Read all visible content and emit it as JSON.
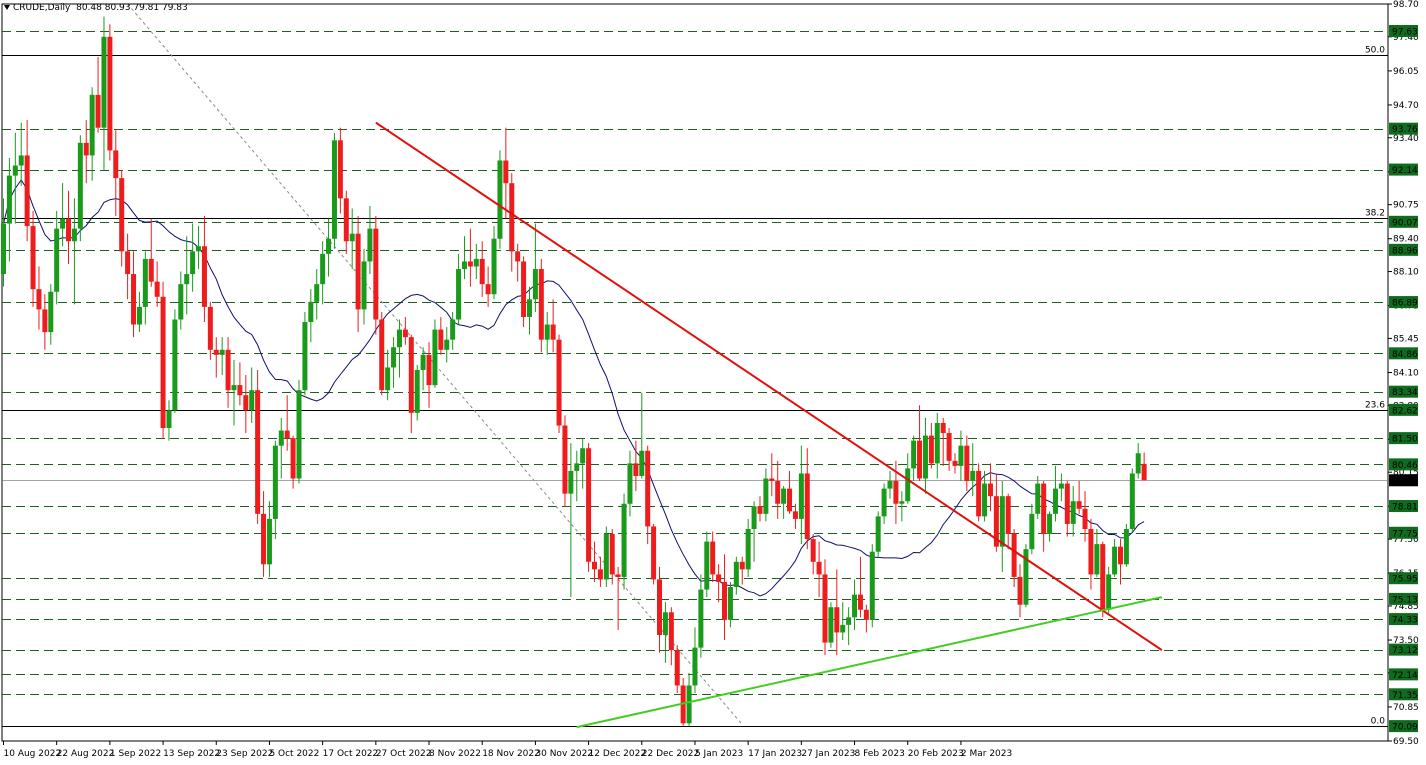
{
  "header": {
    "symbol": "CRUDE,Daily",
    "ohlc": "80.48 80.93 79.81 79.83"
  },
  "colors": {
    "background": "#ffffff",
    "bull": "#1a9a1a",
    "bear": "#ee1c1c",
    "trendline_down": "#e01010",
    "trendline_up": "#44cc22",
    "level_line": "#1f5f1f",
    "ma": "#10106b",
    "fib_line": "#000000",
    "guide": "#8a8a8a"
  },
  "chart_data": {
    "type": "candlestick",
    "x_axis": {
      "labels": [
        "10 Aug 2022",
        "22 Aug 2022",
        "1 Sep 2022",
        "13 Sep 2022",
        "23 Sep 2022",
        "5 Oct 2022",
        "17 Oct 2022",
        "27 Oct 2022",
        "8 Nov 2022",
        "18 Nov 2022",
        "30 Nov 2022",
        "12 Dec 2022",
        "22 Dec 2022",
        "5 Jan 2023",
        "17 Jan 2023",
        "27 Jan 2023",
        "8 Feb 2023",
        "20 Feb 2023",
        "2 Mar 2023"
      ],
      "label_bars": [
        0,
        9,
        18,
        27,
        36,
        45,
        54,
        63,
        72,
        81,
        90,
        99,
        108,
        117,
        126,
        135,
        144,
        153,
        162
      ]
    },
    "y_axis": {
      "range": [
        69.5,
        98.7
      ],
      "tick_labels": [
        "98.70",
        "97.40",
        "96.05",
        "94.70",
        "93.40",
        "92.05",
        "90.75",
        "89.40",
        "88.10",
        "86.75",
        "85.45",
        "84.10",
        "82.80",
        "81.45",
        "80.15",
        "78.80",
        "77.50",
        "76.15",
        "74.85",
        "73.50",
        "72.20",
        "70.85",
        "69.50"
      ]
    },
    "current_price": "79.83",
    "horizontal_levels": [
      "97.63",
      "93.76",
      "92.14",
      "90.07",
      "88.96",
      "86.89",
      "84.86",
      "83.34",
      "82.62",
      "81.50",
      "80.46",
      "78.81",
      "77.75",
      "75.95",
      "75.13",
      "74.33",
      "73.12",
      "72.14",
      "71.35",
      "70.09"
    ],
    "fibonacci": [
      {
        "label": "50.0",
        "price": 96.67
      },
      {
        "label": "38.2",
        "price": 90.24
      },
      {
        "label": "23.6",
        "price": 82.62
      },
      {
        "label": "0.0",
        "price": 70.09
      }
    ],
    "trendlines": [
      {
        "name": "down",
        "from": {
          "bar": 63,
          "price": 94.0
        },
        "to": {
          "bar": 196,
          "price": 73.1
        }
      },
      {
        "name": "up",
        "from": {
          "bar": 97,
          "price": 70.05
        },
        "to": {
          "bar": 196,
          "price": 75.2
        }
      }
    ],
    "diagonal_guide": {
      "from": {
        "bar": 21,
        "price": 98.7
      },
      "to": {
        "bar": 125,
        "price": 70.15
      }
    },
    "candles": [
      [
        88.0,
        91.0,
        87.5,
        90.0
      ],
      [
        90.0,
        92.6,
        88.5,
        91.9
      ],
      [
        91.9,
        93.6,
        90.0,
        92.3
      ],
      [
        92.3,
        94.0,
        91.5,
        92.7
      ],
      [
        92.7,
        94.1,
        89.3,
        89.9
      ],
      [
        89.9,
        90.5,
        86.7,
        87.4
      ],
      [
        87.4,
        88.3,
        85.8,
        86.6
      ],
      [
        86.6,
        87.2,
        85.0,
        85.7
      ],
      [
        85.7,
        87.6,
        85.2,
        87.3
      ],
      [
        87.3,
        90.5,
        86.8,
        89.8
      ],
      [
        89.8,
        91.6,
        89.1,
        90.2
      ],
      [
        90.2,
        91.3,
        88.4,
        89.3
      ],
      [
        89.3,
        91.0,
        86.8,
        89.8
      ],
      [
        89.8,
        93.5,
        89.3,
        93.2
      ],
      [
        93.2,
        94.1,
        91.6,
        92.7
      ],
      [
        92.7,
        95.4,
        91.7,
        95.1
      ],
      [
        95.1,
        96.6,
        93.6,
        93.8
      ],
      [
        93.8,
        98.2,
        92.1,
        97.4
      ],
      [
        97.4,
        97.9,
        92.5,
        92.9
      ],
      [
        92.9,
        93.7,
        90.3,
        91.8
      ],
      [
        91.8,
        92.1,
        88.3,
        88.9
      ],
      [
        88.9,
        89.6,
        87.0,
        88.0
      ],
      [
        88.0,
        88.9,
        85.5,
        86.0
      ],
      [
        86.0,
        87.3,
        85.7,
        86.7
      ],
      [
        86.7,
        88.9,
        86.0,
        88.6
      ],
      [
        88.6,
        90.2,
        87.5,
        87.7
      ],
      [
        87.7,
        88.5,
        86.7,
        87.1
      ],
      [
        87.1,
        87.7,
        81.5,
        81.9
      ],
      [
        81.9,
        83.0,
        81.4,
        82.6
      ],
      [
        82.6,
        86.6,
        82.5,
        86.2
      ],
      [
        86.2,
        88.1,
        85.8,
        87.6
      ],
      [
        87.6,
        89.5,
        86.4,
        88.0
      ],
      [
        88.0,
        90.0,
        87.3,
        88.9
      ],
      [
        88.9,
        89.9,
        88.2,
        89.1
      ],
      [
        89.1,
        90.3,
        86.1,
        86.7
      ],
      [
        86.7,
        86.9,
        84.6,
        85.0
      ],
      [
        85.0,
        85.5,
        83.9,
        84.8
      ],
      [
        84.8,
        85.5,
        84.0,
        85.0
      ],
      [
        85.0,
        85.5,
        82.7,
        83.4
      ],
      [
        83.4,
        84.6,
        82.0,
        83.6
      ],
      [
        83.6,
        84.5,
        82.8,
        83.2
      ],
      [
        83.2,
        84.0,
        81.7,
        82.6
      ],
      [
        82.6,
        84.3,
        82.1,
        83.4
      ],
      [
        83.4,
        84.2,
        78.1,
        78.5
      ],
      [
        78.5,
        79.4,
        76.0,
        76.5
      ],
      [
        76.5,
        79.0,
        76.0,
        78.3
      ],
      [
        78.3,
        81.4,
        77.5,
        81.2
      ],
      [
        81.2,
        82.3,
        79.9,
        81.8
      ],
      [
        81.8,
        83.2,
        81.0,
        81.5
      ],
      [
        81.5,
        81.6,
        79.5,
        79.9
      ],
      [
        79.9,
        83.8,
        79.7,
        83.4
      ],
      [
        83.4,
        86.5,
        83.2,
        86.1
      ],
      [
        86.1,
        87.4,
        85.3,
        86.9
      ],
      [
        86.9,
        88.2,
        86.2,
        87.6
      ],
      [
        87.6,
        89.3,
        86.8,
        88.8
      ],
      [
        88.8,
        90.2,
        87.9,
        89.4
      ],
      [
        89.4,
        93.6,
        89.0,
        93.3
      ],
      [
        93.3,
        93.8,
        90.4,
        91.0
      ],
      [
        91.0,
        91.3,
        88.8,
        89.3
      ],
      [
        89.3,
        90.6,
        88.2,
        89.6
      ],
      [
        89.6,
        90.3,
        85.7,
        86.6
      ],
      [
        86.6,
        89.0,
        86.0,
        88.5
      ],
      [
        88.5,
        90.7,
        88.0,
        89.8
      ],
      [
        89.8,
        90.3,
        85.6,
        86.2
      ],
      [
        86.2,
        86.5,
        83.2,
        83.4
      ],
      [
        83.4,
        85.0,
        83.0,
        84.3
      ],
      [
        84.3,
        85.5,
        83.5,
        85.1
      ],
      [
        85.1,
        86.2,
        83.9,
        85.8
      ],
      [
        85.8,
        86.3,
        85.2,
        85.5
      ],
      [
        85.5,
        85.6,
        81.7,
        82.5
      ],
      [
        82.5,
        84.4,
        82.2,
        84.2
      ],
      [
        84.2,
        85.1,
        83.4,
        84.8
      ],
      [
        84.8,
        85.3,
        82.7,
        83.6
      ],
      [
        83.6,
        86.2,
        83.5,
        85.8
      ],
      [
        85.8,
        86.3,
        84.8,
        85.0
      ],
      [
        85.0,
        85.9,
        84.5,
        85.4
      ],
      [
        85.4,
        86.5,
        85.0,
        86.2
      ],
      [
        86.2,
        88.8,
        86.0,
        88.2
      ],
      [
        88.2,
        89.5,
        87.8,
        88.5
      ],
      [
        88.5,
        89.8,
        87.5,
        88.3
      ],
      [
        88.3,
        89.2,
        87.8,
        88.6
      ],
      [
        88.6,
        89.3,
        87.1,
        87.6
      ],
      [
        87.6,
        88.3,
        86.7,
        87.2
      ],
      [
        87.2,
        89.9,
        87.0,
        89.4
      ],
      [
        89.4,
        92.9,
        89.0,
        92.5
      ],
      [
        92.5,
        93.8,
        90.2,
        91.6
      ],
      [
        91.6,
        92.0,
        88.1,
        88.9
      ],
      [
        88.9,
        89.2,
        87.7,
        88.5
      ],
      [
        88.5,
        88.7,
        85.9,
        86.3
      ],
      [
        86.3,
        87.5,
        85.6,
        87.0
      ],
      [
        87.0,
        90.0,
        86.5,
        88.2
      ],
      [
        88.2,
        88.6,
        84.9,
        85.4
      ],
      [
        85.4,
        86.5,
        84.8,
        86.0
      ],
      [
        86.0,
        87.0,
        84.9,
        85.4
      ],
      [
        85.4,
        85.6,
        81.7,
        82.0
      ],
      [
        82.0,
        82.4,
        78.8,
        79.3
      ],
      [
        79.3,
        81.3,
        75.2,
        80.2
      ],
      [
        80.2,
        81.0,
        79.0,
        80.5
      ],
      [
        80.5,
        81.5,
        79.5,
        81.1
      ],
      [
        81.1,
        81.3,
        76.2,
        76.6
      ],
      [
        76.6,
        77.4,
        75.8,
        76.3
      ],
      [
        76.3,
        76.8,
        75.6,
        75.9
      ],
      [
        75.9,
        78.0,
        75.6,
        77.7
      ],
      [
        77.7,
        77.9,
        75.7,
        76.1
      ],
      [
        76.1,
        76.4,
        73.9,
        76.0
      ],
      [
        76.0,
        79.3,
        75.5,
        78.9
      ],
      [
        78.9,
        81.0,
        78.4,
        80.5
      ],
      [
        80.5,
        81.4,
        79.4,
        80.0
      ],
      [
        80.0,
        83.3,
        79.9,
        81.0
      ],
      [
        81.0,
        81.2,
        77.3,
        78.0
      ],
      [
        78.0,
        78.1,
        75.7,
        75.9
      ],
      [
        75.9,
        76.4,
        73.0,
        73.7
      ],
      [
        73.7,
        75.0,
        72.6,
        74.6
      ],
      [
        74.6,
        74.8,
        72.5,
        73.1
      ],
      [
        73.1,
        73.3,
        71.4,
        71.7
      ],
      [
        71.7,
        72.0,
        70.1,
        70.2
      ],
      [
        70.2,
        72.2,
        70.1,
        71.7
      ],
      [
        71.7,
        74.0,
        71.4,
        73.2
      ],
      [
        73.2,
        76.1,
        72.8,
        75.5
      ],
      [
        75.5,
        77.8,
        75.2,
        77.4
      ],
      [
        77.4,
        77.8,
        75.8,
        76.1
      ],
      [
        76.1,
        76.5,
        75.0,
        75.8
      ],
      [
        75.8,
        76.9,
        73.5,
        74.3
      ],
      [
        74.3,
        75.8,
        74.0,
        75.6
      ],
      [
        75.6,
        76.8,
        75.3,
        76.6
      ],
      [
        76.6,
        76.8,
        75.7,
        76.3
      ],
      [
        76.3,
        78.3,
        76.0,
        77.9
      ],
      [
        77.9,
        79.0,
        76.6,
        78.8
      ],
      [
        78.8,
        79.2,
        78.2,
        78.5
      ],
      [
        78.5,
        80.3,
        78.2,
        79.9
      ],
      [
        79.9,
        80.9,
        79.2,
        79.8
      ],
      [
        79.8,
        80.6,
        78.3,
        78.9
      ],
      [
        78.9,
        79.6,
        78.3,
        79.5
      ],
      [
        79.5,
        80.2,
        78.5,
        78.6
      ],
      [
        78.6,
        78.9,
        77.9,
        78.3
      ],
      [
        78.3,
        81.2,
        77.3,
        80.1
      ],
      [
        80.1,
        81.1,
        77.1,
        77.5
      ],
      [
        77.5,
        77.7,
        76.1,
        76.6
      ],
      [
        76.6,
        77.4,
        75.2,
        76.1
      ],
      [
        76.1,
        76.7,
        72.9,
        73.4
      ],
      [
        73.4,
        75.0,
        73.2,
        74.8
      ],
      [
        74.8,
        76.3,
        72.9,
        73.8
      ],
      [
        73.8,
        75.0,
        73.5,
        74.1
      ],
      [
        74.1,
        74.8,
        73.3,
        74.4
      ],
      [
        74.4,
        75.9,
        73.9,
        75.3
      ],
      [
        75.3,
        76.8,
        74.4,
        74.7
      ],
      [
        74.7,
        74.9,
        73.8,
        74.3
      ],
      [
        74.3,
        77.3,
        74.0,
        77.0
      ],
      [
        77.0,
        78.6,
        76.8,
        78.4
      ],
      [
        78.4,
        79.7,
        78.1,
        79.5
      ],
      [
        79.5,
        80.2,
        79.1,
        79.8
      ],
      [
        79.8,
        80.6,
        78.1,
        78.9
      ],
      [
        78.9,
        79.4,
        78.2,
        79.0
      ],
      [
        79.0,
        80.9,
        78.9,
        80.3
      ],
      [
        80.3,
        81.6,
        79.8,
        81.4
      ],
      [
        81.4,
        82.8,
        79.8,
        79.9
      ],
      [
        79.9,
        82.3,
        79.3,
        81.6
      ],
      [
        81.6,
        82.1,
        80.3,
        80.5
      ],
      [
        80.5,
        82.5,
        79.9,
        82.1
      ],
      [
        82.1,
        82.3,
        80.4,
        81.7
      ],
      [
        81.7,
        81.9,
        80.2,
        80.6
      ],
      [
        80.6,
        80.9,
        80.1,
        80.4
      ],
      [
        80.4,
        81.8,
        79.8,
        81.2
      ],
      [
        81.2,
        81.6,
        79.4,
        79.8
      ],
      [
        79.8,
        81.3,
        79.2,
        80.2
      ],
      [
        80.2,
        80.5,
        78.2,
        78.4
      ],
      [
        78.4,
        80.2,
        78.2,
        79.7
      ],
      [
        79.7,
        80.5,
        78.6,
        79.2
      ],
      [
        79.2,
        80.1,
        77.0,
        77.2
      ],
      [
        77.2,
        79.8,
        76.2,
        79.2
      ],
      [
        79.2,
        79.3,
        77.1,
        77.7
      ],
      [
        77.7,
        77.9,
        75.6,
        76.0
      ],
      [
        76.0,
        76.5,
        74.4,
        74.9
      ],
      [
        74.9,
        77.3,
        74.8,
        77.1
      ],
      [
        77.1,
        78.9,
        76.9,
        78.5
      ],
      [
        78.5,
        80.0,
        78.3,
        79.7
      ],
      [
        79.7,
        79.8,
        77.0,
        77.7
      ],
      [
        77.7,
        78.6,
        77.4,
        78.5
      ],
      [
        78.5,
        80.4,
        78.2,
        79.5
      ],
      [
        79.5,
        80.1,
        79.0,
        79.7
      ],
      [
        79.7,
        79.8,
        77.6,
        78.1
      ],
      [
        78.1,
        79.6,
        77.6,
        79.0
      ],
      [
        79.0,
        79.8,
        78.5,
        78.7
      ],
      [
        78.7,
        79.4,
        77.4,
        77.9
      ],
      [
        77.9,
        78.3,
        75.5,
        76.1
      ],
      [
        76.1,
        77.9,
        76.0,
        77.3
      ],
      [
        77.3,
        77.4,
        74.4,
        74.7
      ],
      [
        74.7,
        76.4,
        74.5,
        76.1
      ],
      [
        76.1,
        77.5,
        76.0,
        77.2
      ],
      [
        77.2,
        77.5,
        75.7,
        76.5
      ],
      [
        76.5,
        78.1,
        76.4,
        77.9
      ],
      [
        77.9,
        80.3,
        77.8,
        80.1
      ],
      [
        80.1,
        81.3,
        79.9,
        80.9
      ],
      [
        80.48,
        80.93,
        79.81,
        79.83
      ]
    ]
  }
}
